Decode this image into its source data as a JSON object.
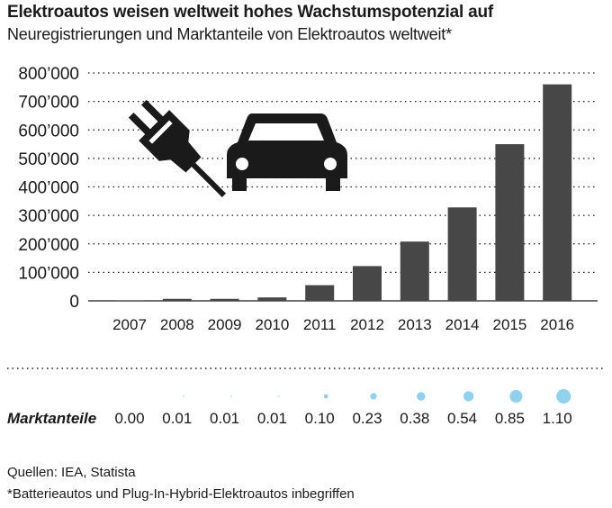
{
  "title": "Elektroautos weisen weltweit hohes Wachstumspotenzial auf",
  "subtitle": "Neuregistrierungen und Marktanteile von Elektroautos weltweit*",
  "chart_data": {
    "type": "bar",
    "categories": [
      "2007",
      "2008",
      "2009",
      "2010",
      "2011",
      "2012",
      "2013",
      "2014",
      "2015",
      "2016"
    ],
    "values": [
      1000,
      7000,
      7000,
      12000,
      55000,
      122000,
      208000,
      328000,
      550000,
      760000
    ],
    "ylim": [
      0,
      800000
    ],
    "yticks": [
      0,
      100000,
      200000,
      300000,
      400000,
      500000,
      600000,
      700000,
      800000
    ],
    "ytick_labels": [
      "0",
      "100’000",
      "200’000",
      "300’000",
      "400’000",
      "500’000",
      "600’000",
      "700’000",
      "800’000"
    ],
    "grid": true,
    "bar_color": "#474747",
    "share_label": "Marktanteile",
    "share_values": [
      "0.00",
      "0.01",
      "0.01",
      "0.01",
      "0.10",
      "0.23",
      "0.38",
      "0.54",
      "0.85",
      "1.10"
    ],
    "share_bubble_color": "#8dd3ef",
    "icons": [
      "plug-icon",
      "car-icon"
    ]
  },
  "source": "Quellen: IEA, Statista",
  "footnote": "*Batterieautos und Plug-In-Hybrid-Elektroautos inbegriffen"
}
